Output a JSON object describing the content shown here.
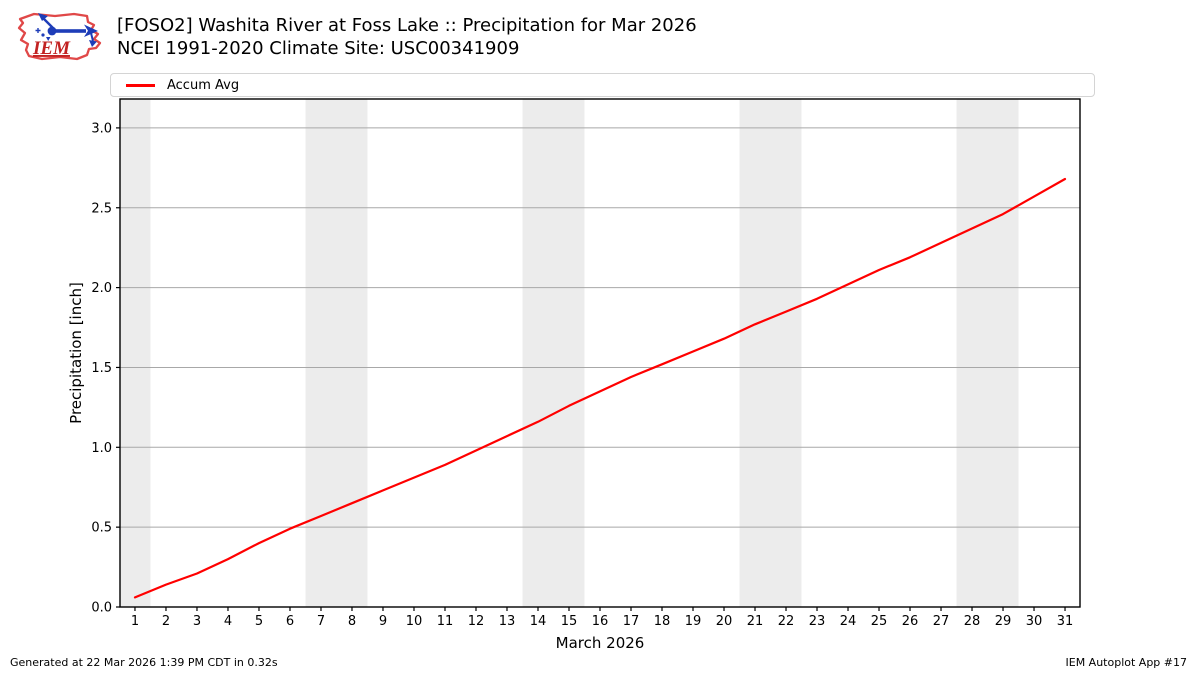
{
  "header": {
    "logo_text": "IEM",
    "title": "[FOSO2] Washita River at Foss Lake :: Precipitation for Mar 2026",
    "subtitle": "NCEI 1991-2020 Climate Site: USC00341909"
  },
  "legend": {
    "items": [
      {
        "label": "Accum Avg",
        "color": "#ff0000"
      }
    ]
  },
  "chart_data": {
    "type": "line",
    "title": "[FOSO2] Washita River at Foss Lake :: Precipitation for Mar 2026",
    "subtitle": "NCEI 1991-2020 Climate Site: USC00341909",
    "xlabel": "March 2026",
    "ylabel": "Precipitation [inch]",
    "xlim": [
      0.517,
      31.483
    ],
    "ylim": [
      0,
      3.181
    ],
    "grid": "horizontal",
    "grid_color": "#a8a8a8",
    "band_color": "#ececec",
    "legend_position": "top",
    "x_ticks": [
      1,
      2,
      3,
      4,
      5,
      6,
      7,
      8,
      9,
      10,
      11,
      12,
      13,
      14,
      15,
      16,
      17,
      18,
      19,
      20,
      21,
      22,
      23,
      24,
      25,
      26,
      27,
      28,
      29,
      30,
      31
    ],
    "y_ticks": [
      0.0,
      0.5,
      1.0,
      1.5,
      2.0,
      2.5,
      3.0
    ],
    "weekend_bands": [
      [
        0.517,
        1.5
      ],
      [
        6.5,
        8.5
      ],
      [
        13.5,
        15.5
      ],
      [
        20.5,
        22.5
      ],
      [
        27.5,
        29.5
      ]
    ],
    "series": [
      {
        "name": "Accum Avg",
        "color": "#ff0000",
        "x": [
          1,
          2,
          3,
          4,
          5,
          6,
          7,
          8,
          9,
          10,
          11,
          12,
          13,
          14,
          15,
          16,
          17,
          18,
          19,
          20,
          21,
          22,
          23,
          24,
          25,
          26,
          27,
          28,
          29,
          30,
          31
        ],
        "y": [
          0.06,
          0.14,
          0.21,
          0.3,
          0.4,
          0.49,
          0.57,
          0.65,
          0.73,
          0.81,
          0.89,
          0.98,
          1.07,
          1.16,
          1.26,
          1.35,
          1.44,
          1.52,
          1.6,
          1.68,
          1.77,
          1.85,
          1.93,
          2.02,
          2.11,
          2.19,
          2.28,
          2.37,
          2.46,
          2.57,
          2.68
        ]
      }
    ]
  },
  "footer": {
    "left": "Generated at 22 Mar 2026 1:39 PM CDT in 0.32s",
    "right": "IEM Autoplot App #17"
  }
}
